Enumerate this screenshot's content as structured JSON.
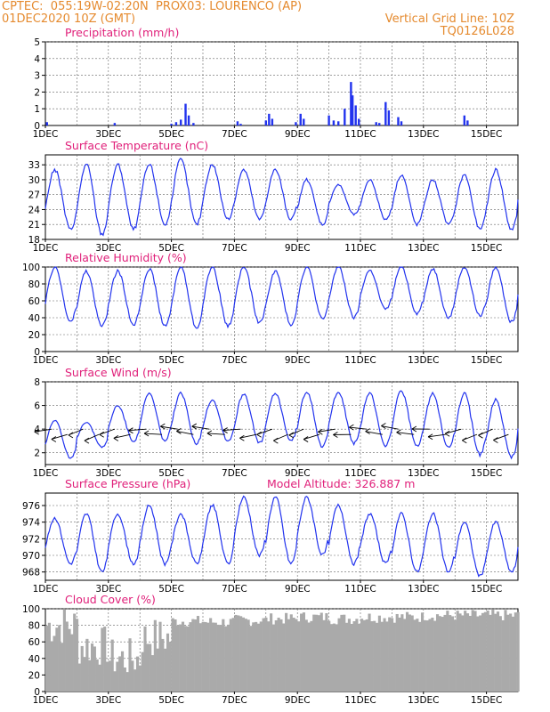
{
  "header": {
    "line1": "CPTEC:  055:19W-02:20N  PROX03: LOURENCO (AP)",
    "line2_left": "01DEC2020 10Z (GMT)",
    "line2_right": "Vertical Grid Line: 10Z",
    "line3_right": "TQ0126L028"
  },
  "colors": {
    "header": "#e58a2e",
    "title": "#e0207a",
    "series": "#2233ee",
    "cloud": "#aaaaaa",
    "grid": "#666666"
  },
  "x_ticks": [
    "1DEC",
    "3DEC",
    "5DEC",
    "7DEC",
    "9DEC",
    "11DEC",
    "13DEC",
    "15DEC"
  ],
  "chart_data": [
    {
      "id": "precip",
      "type": "bar",
      "title": "Precipitation (mm/h)",
      "ylim": [
        0,
        5
      ],
      "yticks": [
        0,
        1,
        2,
        3,
        4,
        5
      ],
      "x_unit": "days since 01DEC 10Z",
      "events": [
        [
          0.05,
          0.2
        ],
        [
          2.2,
          0.15
        ],
        [
          4.0,
          0.1
        ],
        [
          4.15,
          0.2
        ],
        [
          4.3,
          0.35
        ],
        [
          4.45,
          1.3
        ],
        [
          4.55,
          0.6
        ],
        [
          4.7,
          0.15
        ],
        [
          6.1,
          0.25
        ],
        [
          6.2,
          0.1
        ],
        [
          7.0,
          0.3
        ],
        [
          7.1,
          0.7
        ],
        [
          7.2,
          0.4
        ],
        [
          7.95,
          0.2
        ],
        [
          8.1,
          0.7
        ],
        [
          8.2,
          0.4
        ],
        [
          9.0,
          0.6
        ],
        [
          9.15,
          0.3
        ],
        [
          9.3,
          0.25
        ],
        [
          9.5,
          1.0
        ],
        [
          9.7,
          2.6
        ],
        [
          9.75,
          1.8
        ],
        [
          9.85,
          1.2
        ],
        [
          9.95,
          0.4
        ],
        [
          10.5,
          0.2
        ],
        [
          10.6,
          0.15
        ],
        [
          10.8,
          1.4
        ],
        [
          10.9,
          0.9
        ],
        [
          11.2,
          0.5
        ],
        [
          11.3,
          0.25
        ],
        [
          13.3,
          0.6
        ],
        [
          13.4,
          0.3
        ]
      ]
    },
    {
      "id": "temp",
      "type": "line",
      "title": "Surface Temperature (nC)",
      "ylim": [
        18,
        35
      ],
      "yticks": [
        18,
        21,
        24,
        27,
        30,
        33
      ],
      "min": [
        20,
        19,
        20,
        21,
        21,
        22,
        22,
        22,
        21,
        23,
        22,
        21,
        21,
        20,
        20
      ],
      "max": [
        32,
        33,
        33,
        33,
        34,
        33,
        32,
        32,
        30,
        29,
        30,
        31,
        30,
        31,
        32
      ]
    },
    {
      "id": "rh",
      "type": "line",
      "title": "Relative Humidity (%)",
      "ylim": [
        0,
        100
      ],
      "yticks": [
        0,
        20,
        40,
        60,
        80,
        100
      ],
      "min": [
        35,
        30,
        32,
        30,
        28,
        30,
        34,
        32,
        38,
        40,
        50,
        45,
        40,
        42,
        35
      ],
      "max": [
        100,
        95,
        95,
        98,
        100,
        100,
        100,
        95,
        100,
        100,
        96,
        100,
        98,
        100,
        100
      ]
    },
    {
      "id": "wind",
      "type": "line",
      "title": "Surface Wind (m/s)",
      "ylim": [
        1,
        8
      ],
      "yticks": [
        2,
        4,
        6,
        8
      ],
      "min": [
        1.5,
        2.5,
        3.0,
        3.0,
        2.8,
        3.0,
        2.8,
        3.0,
        2.5,
        2.8,
        2.6,
        2.5,
        2.4,
        1.8,
        1.6
      ],
      "max": [
        4.8,
        4.6,
        6.0,
        7.0,
        7.0,
        6.5,
        7.0,
        7.0,
        7.2,
        7.2,
        7.0,
        7.2,
        7.0,
        7.0,
        6.5
      ]
    },
    {
      "id": "pressure",
      "type": "line",
      "title": "Surface Pressure (hPa)",
      "annotation": "Model Altitude: 326.887 m",
      "ylim": [
        967,
        977.5
      ],
      "yticks": [
        968,
        970,
        972,
        974,
        976
      ],
      "min": [
        969,
        968,
        969,
        969,
        969,
        969,
        970,
        969,
        970,
        969,
        969,
        968,
        968,
        967.5,
        968
      ],
      "max": [
        974.5,
        975,
        975,
        976,
        975,
        976,
        977,
        977,
        977,
        976,
        975,
        975,
        975,
        974,
        974
      ]
    },
    {
      "id": "cloud",
      "type": "bar",
      "title": "Cloud Cover (%)",
      "ylim": [
        0,
        100
      ],
      "yticks": [
        0,
        20,
        40,
        60,
        80,
        100
      ],
      "daily_mean": [
        80,
        55,
        40,
        65,
        85,
        84,
        86,
        88,
        90,
        88,
        90,
        90,
        92,
        92,
        92
      ]
    }
  ]
}
